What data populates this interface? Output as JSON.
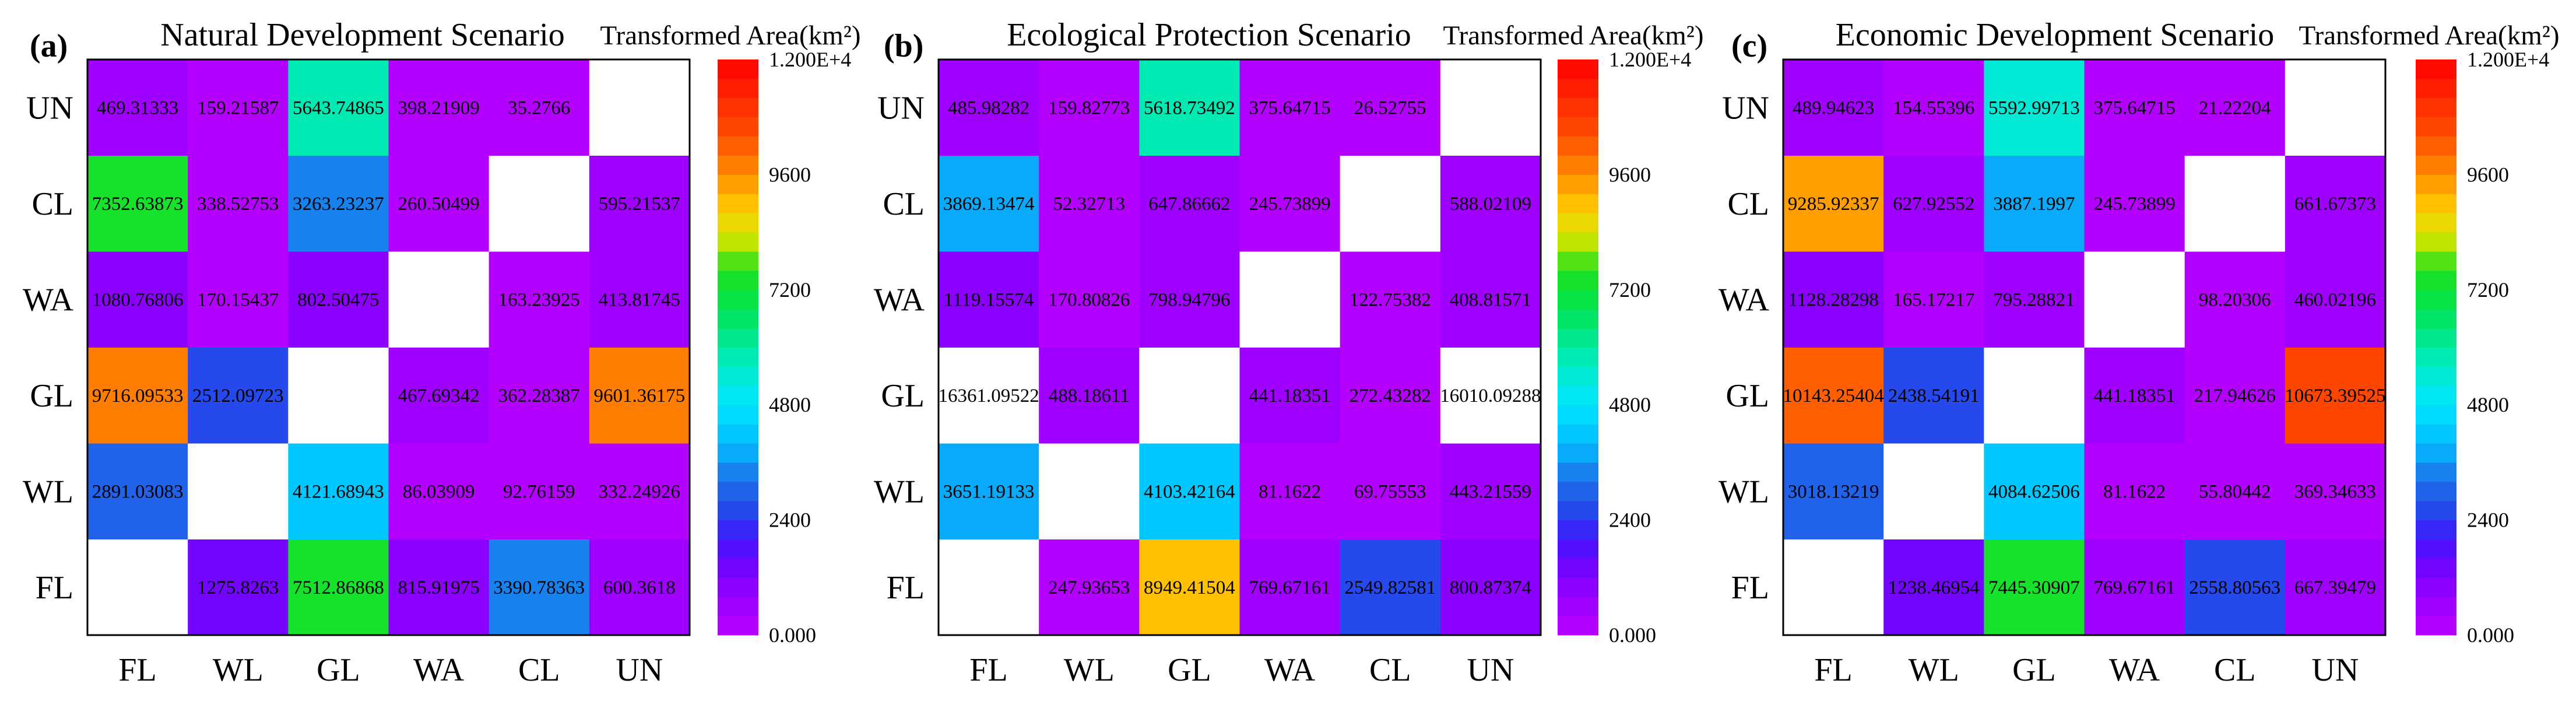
{
  "chart_data": [
    {
      "type": "heatmap",
      "panel_label": "(a)",
      "title": "Natural Development Scenario",
      "x_categories": [
        "FL",
        "WL",
        "GL",
        "WA",
        "CL",
        "UN"
      ],
      "y_categories": [
        "FL",
        "WL",
        "GL",
        "WA",
        "CL",
        "UN"
      ],
      "values": [
        [
          null,
          1275.8263,
          7512.86868,
          815.91975,
          3390.78363,
          600.3618
        ],
        [
          2891.03083,
          null,
          4121.68943,
          86.03909,
          92.76159,
          332.24926
        ],
        [
          9716.09533,
          2512.09723,
          null,
          467.69342,
          362.28387,
          9601.36175
        ],
        [
          1080.76806,
          170.15437,
          802.50475,
          null,
          163.23925,
          413.81745
        ],
        [
          7352.63873,
          338.52753,
          3263.23237,
          260.50499,
          null,
          595.21537
        ],
        [
          469.31333,
          159.21587,
          5643.74865,
          398.21909,
          35.2766,
          null
        ]
      ],
      "colorbar": {
        "title": "Transformed Area(km²)",
        "min": 0,
        "max": 12000,
        "band_step": 400,
        "blank_color": "#ffffff",
        "ticks": [
          {
            "value": 12000,
            "label": "1.200E+4"
          },
          {
            "value": 9600,
            "label": "9600"
          },
          {
            "value": 7200,
            "label": "7200"
          },
          {
            "value": 4800,
            "label": "4800"
          },
          {
            "value": 2400,
            "label": "2400"
          },
          {
            "value": 0,
            "label": "0.000"
          }
        ],
        "colormap": [
          {
            "value": 0,
            "color": "#be00ff"
          },
          {
            "value": 1200,
            "color": "#8200ff"
          },
          {
            "value": 2000,
            "color": "#4614ff"
          },
          {
            "value": 2400,
            "color": "#283cf0"
          },
          {
            "value": 3200,
            "color": "#1e6ee8"
          },
          {
            "value": 4000,
            "color": "#00beff"
          },
          {
            "value": 4800,
            "color": "#00e6ff"
          },
          {
            "value": 5600,
            "color": "#00ebc8"
          },
          {
            "value": 6400,
            "color": "#00e678"
          },
          {
            "value": 6800,
            "color": "#00e450"
          },
          {
            "value": 7600,
            "color": "#1ee11e"
          },
          {
            "value": 8200,
            "color": "#bee600"
          },
          {
            "value": 8800,
            "color": "#ffd200"
          },
          {
            "value": 9600,
            "color": "#ff8c00"
          },
          {
            "value": 10400,
            "color": "#ff5000"
          },
          {
            "value": 12000,
            "color": "#ff0000"
          }
        ]
      }
    },
    {
      "type": "heatmap",
      "panel_label": "(b)",
      "title": "Ecological Protection Scenario",
      "x_categories": [
        "FL",
        "WL",
        "GL",
        "WA",
        "CL",
        "UN"
      ],
      "y_categories": [
        "FL",
        "WL",
        "GL",
        "WA",
        "CL",
        "UN"
      ],
      "values": [
        [
          null,
          247.93653,
          8949.41504,
          769.67161,
          2549.82581,
          800.87374
        ],
        [
          3651.19133,
          null,
          4103.42164,
          81.1622,
          69.75553,
          443.21559
        ],
        [
          16361.09522,
          488.18611,
          null,
          441.18351,
          272.43282,
          16010.09288
        ],
        [
          1119.15574,
          170.80826,
          798.94796,
          null,
          122.75382,
          408.81571
        ],
        [
          3869.13474,
          52.32713,
          647.86662,
          245.73899,
          null,
          588.02109
        ],
        [
          485.98282,
          159.82773,
          5618.73492,
          375.64715,
          26.52755,
          null
        ]
      ],
      "colorbar": {
        "title": "Transformed Area(km²)",
        "min": 0,
        "max": 12000,
        "band_step": 400,
        "blank_color": "#ffffff",
        "ticks": [
          {
            "value": 12000,
            "label": "1.200E+4"
          },
          {
            "value": 9600,
            "label": "9600"
          },
          {
            "value": 7200,
            "label": "7200"
          },
          {
            "value": 4800,
            "label": "4800"
          },
          {
            "value": 2400,
            "label": "2400"
          },
          {
            "value": 0,
            "label": "0.000"
          }
        ],
        "colormap": [
          {
            "value": 0,
            "color": "#be00ff"
          },
          {
            "value": 1200,
            "color": "#8200ff"
          },
          {
            "value": 2000,
            "color": "#4614ff"
          },
          {
            "value": 2400,
            "color": "#283cf0"
          },
          {
            "value": 3200,
            "color": "#1e6ee8"
          },
          {
            "value": 4000,
            "color": "#00beff"
          },
          {
            "value": 4800,
            "color": "#00e6ff"
          },
          {
            "value": 5600,
            "color": "#00ebc8"
          },
          {
            "value": 6400,
            "color": "#00e678"
          },
          {
            "value": 6800,
            "color": "#00e450"
          },
          {
            "value": 7600,
            "color": "#1ee11e"
          },
          {
            "value": 8200,
            "color": "#bee600"
          },
          {
            "value": 8800,
            "color": "#ffd200"
          },
          {
            "value": 9600,
            "color": "#ff8c00"
          },
          {
            "value": 10400,
            "color": "#ff5000"
          },
          {
            "value": 12000,
            "color": "#ff0000"
          }
        ]
      }
    },
    {
      "type": "heatmap",
      "panel_label": "(c)",
      "title": "Economic Development Scenario",
      "x_categories": [
        "FL",
        "WL",
        "GL",
        "WA",
        "CL",
        "UN"
      ],
      "y_categories": [
        "FL",
        "WL",
        "GL",
        "WA",
        "CL",
        "UN"
      ],
      "values": [
        [
          null,
          1238.46954,
          7445.30907,
          769.67161,
          2558.80563,
          667.39479
        ],
        [
          3018.13219,
          null,
          4084.62506,
          81.1622,
          55.80442,
          369.34633
        ],
        [
          10143.25404,
          2438.54191,
          null,
          441.18351,
          217.94626,
          10673.39525
        ],
        [
          1128.28298,
          165.17217,
          795.28821,
          null,
          98.20306,
          460.02196
        ],
        [
          9285.92337,
          627.92552,
          3887.1997,
          245.73899,
          null,
          661.67373
        ],
        [
          489.94623,
          154.55396,
          5592.99713,
          375.64715,
          21.22204,
          null
        ]
      ],
      "colorbar": {
        "title": "Transformed Area(km²)",
        "min": 0,
        "max": 12000,
        "band_step": 400,
        "blank_color": "#ffffff",
        "ticks": [
          {
            "value": 12000,
            "label": "1.200E+4"
          },
          {
            "value": 9600,
            "label": "9600"
          },
          {
            "value": 7200,
            "label": "7200"
          },
          {
            "value": 4800,
            "label": "4800"
          },
          {
            "value": 2400,
            "label": "2400"
          },
          {
            "value": 0,
            "label": "0.000"
          }
        ],
        "colormap": [
          {
            "value": 0,
            "color": "#be00ff"
          },
          {
            "value": 1200,
            "color": "#8200ff"
          },
          {
            "value": 2000,
            "color": "#4614ff"
          },
          {
            "value": 2400,
            "color": "#283cf0"
          },
          {
            "value": 3200,
            "color": "#1e6ee8"
          },
          {
            "value": 4000,
            "color": "#00beff"
          },
          {
            "value": 4800,
            "color": "#00e6ff"
          },
          {
            "value": 5600,
            "color": "#00ebc8"
          },
          {
            "value": 6400,
            "color": "#00e678"
          },
          {
            "value": 6800,
            "color": "#00e450"
          },
          {
            "value": 7600,
            "color": "#1ee11e"
          },
          {
            "value": 8200,
            "color": "#bee600"
          },
          {
            "value": 8800,
            "color": "#ffd200"
          },
          {
            "value": 9600,
            "color": "#ff8c00"
          },
          {
            "value": 10400,
            "color": "#ff5000"
          },
          {
            "value": 12000,
            "color": "#ff0000"
          }
        ]
      }
    }
  ]
}
